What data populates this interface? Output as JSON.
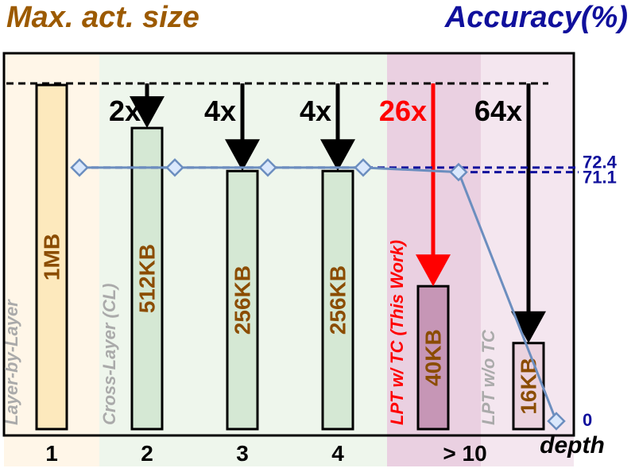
{
  "chart_data": {
    "type": "bar",
    "title": "Max. act. size",
    "y2_title": "Accuracy(%)",
    "x_label": "depth",
    "categories": [
      "1",
      "2",
      "3",
      "4",
      "> 10",
      null
    ],
    "values": [
      1024,
      512,
      256,
      256,
      40,
      16
    ],
    "value_labels": [
      "1MB",
      "512KB",
      "256KB",
      "256KB",
      "40KB",
      "16KB"
    ],
    "colors": [
      "#fde9bd",
      "#d5e8d4",
      "#d5e8d4",
      "#d5e8d4",
      "#c696b6",
      "#ebd3df"
    ],
    "ylog": true,
    "ylim": [
      4,
      1024
    ],
    "annotations": [
      {
        "text": "2x",
        "color": "#000000"
      },
      {
        "text": "4x",
        "color": "#000000"
      },
      {
        "text": "4x",
        "color": "#000000"
      },
      {
        "text": "26x",
        "color": "#ff0000"
      },
      {
        "text": "64x",
        "color": "#000000"
      }
    ],
    "regions": [
      {
        "text": "Layer-by-Layer",
        "color": "#fff6e8",
        "text_color": "#aaaaaa"
      },
      {
        "text": "Cross-Layer (CL)",
        "color": "#eef6ec",
        "text_color": "#aaaaaa"
      },
      {
        "text": "LPT w/ TC (This Work)",
        "color": "#ead0e1",
        "text_color": "#ff0000"
      },
      {
        "text": "LPT w/o TC",
        "color": "#f4e6ef",
        "text_color": "#aaaaaa"
      }
    ],
    "line": {
      "values": [
        72.4,
        72.4,
        72.4,
        72.4,
        71.1,
        0
      ],
      "color": "#6c8ebf",
      "axis": "y2"
    },
    "y2lim": [
      0,
      76
    ],
    "y2ticks": [
      72.4,
      71.1,
      0
    ]
  }
}
